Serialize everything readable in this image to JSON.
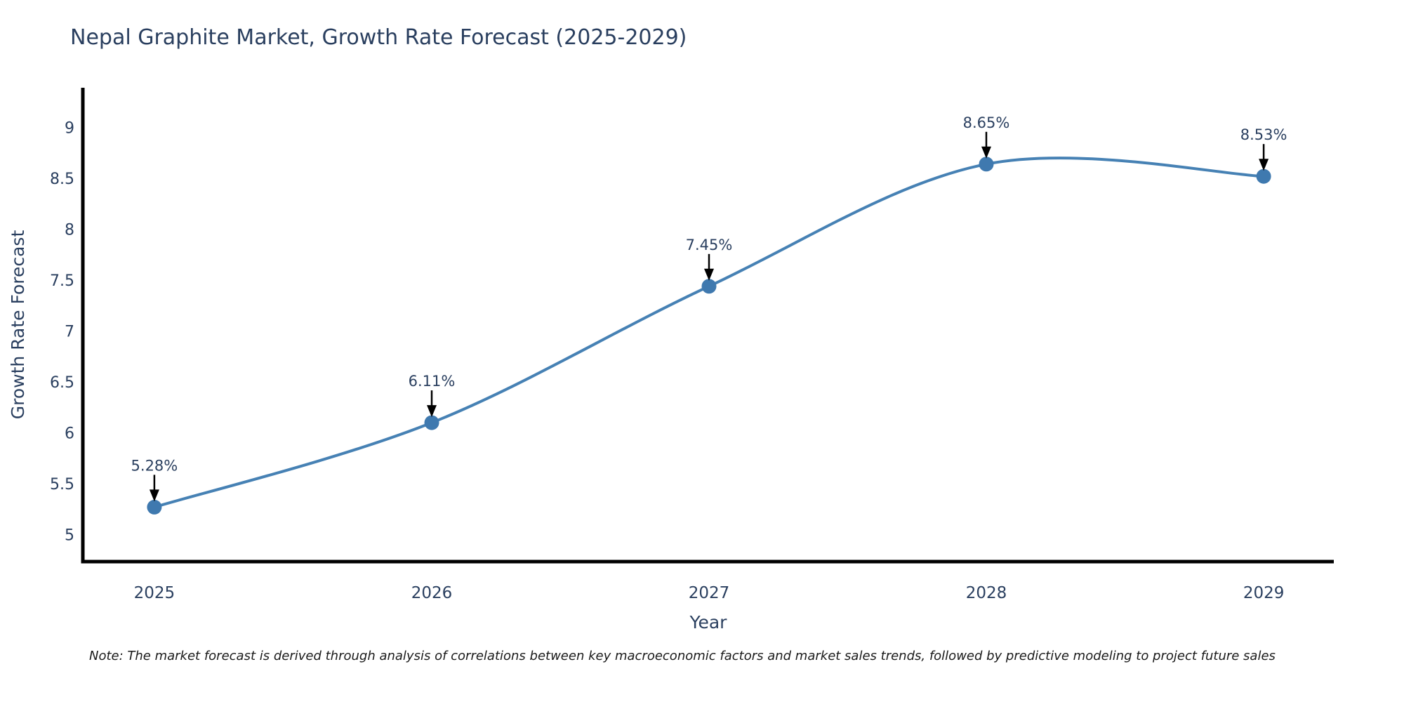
{
  "note": "Note: The market forecast is derived through analysis of correlations between key macroeconomic factors and market sales trends, followed by predictive modeling to project future sales",
  "chart_data": {
    "type": "line",
    "title": "Nepal Graphite Market, Growth Rate Forecast (2025-2029)",
    "xlabel": "Year",
    "ylabel": "Growth Rate Forecast",
    "x": [
      2025,
      2026,
      2027,
      2028,
      2029
    ],
    "y": [
      5.28,
      6.11,
      7.45,
      8.65,
      8.53
    ],
    "point_labels": [
      "5.28%",
      "6.11%",
      "7.45%",
      "8.65%",
      "8.53%"
    ],
    "xticks": [
      2025,
      2026,
      2027,
      2028,
      2029
    ],
    "yticks": [
      5,
      5.5,
      6,
      6.5,
      7,
      7.5,
      8,
      8.5,
      9
    ],
    "xlim": [
      2024.742,
      2029.253
    ],
    "ylim": [
      4.745,
      9.4
    ],
    "line_shape": "spline",
    "grid": false,
    "legend": "none",
    "colors": {
      "line": "#4681b4",
      "marker": "#3f79af",
      "annotation_arrow": "#000000",
      "annotation_text": "#2a3f5f",
      "axis_line": "#000000",
      "tick_text": "#2a3f5f",
      "title_text": "#2a3f5f",
      "background": "#ffffff"
    }
  }
}
